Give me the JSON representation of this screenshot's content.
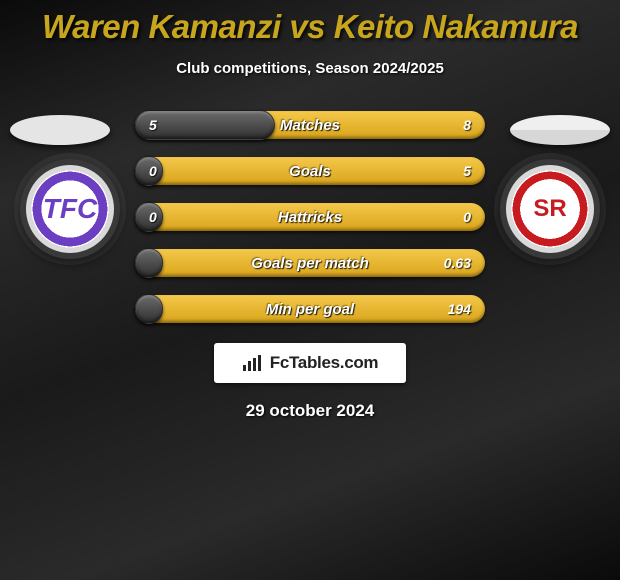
{
  "title": {
    "text": "Waren Kamanzi vs Keito Nakamura",
    "color": "#c7a61e"
  },
  "subtitle": "Club competitions, Season 2024/2025",
  "date": "29 october 2024",
  "brand": {
    "icon": "chart-bars-icon",
    "text": "FcTables.com"
  },
  "flags": {
    "left": {
      "background": "linear-gradient(to bottom,#e5e5e5 0 33%, #e5e5e5 33% 66%, #e5e5e5 66% 100%)"
    },
    "right": {
      "background": "linear-gradient(to bottom,#efefef 0 50%, #d7d7d7 50% 100%)"
    }
  },
  "crests": {
    "left": {
      "initials": "TFC",
      "accent": "#6c3fc2"
    },
    "right": {
      "initials": "SR",
      "accent": "#c81b1f"
    }
  },
  "bars": {
    "track_gradient": [
      "#f5c84a",
      "#d8a41a"
    ],
    "fill_gradient": [
      "#6c6c6c",
      "#2f2f2f"
    ],
    "rows": [
      {
        "label": "Matches",
        "left": "5",
        "right": "8",
        "fill_pct": 40
      },
      {
        "label": "Goals",
        "left": "0",
        "right": "5",
        "fill_pct": 8
      },
      {
        "label": "Hattricks",
        "left": "0",
        "right": "0",
        "fill_pct": 8
      },
      {
        "label": "Goals per match",
        "left": "",
        "right": "0.63",
        "fill_pct": 8
      },
      {
        "label": "Min per goal",
        "left": "",
        "right": "194",
        "fill_pct": 8
      }
    ]
  },
  "colors": {
    "background": "#1a1a1a",
    "text": "#ffffff"
  }
}
